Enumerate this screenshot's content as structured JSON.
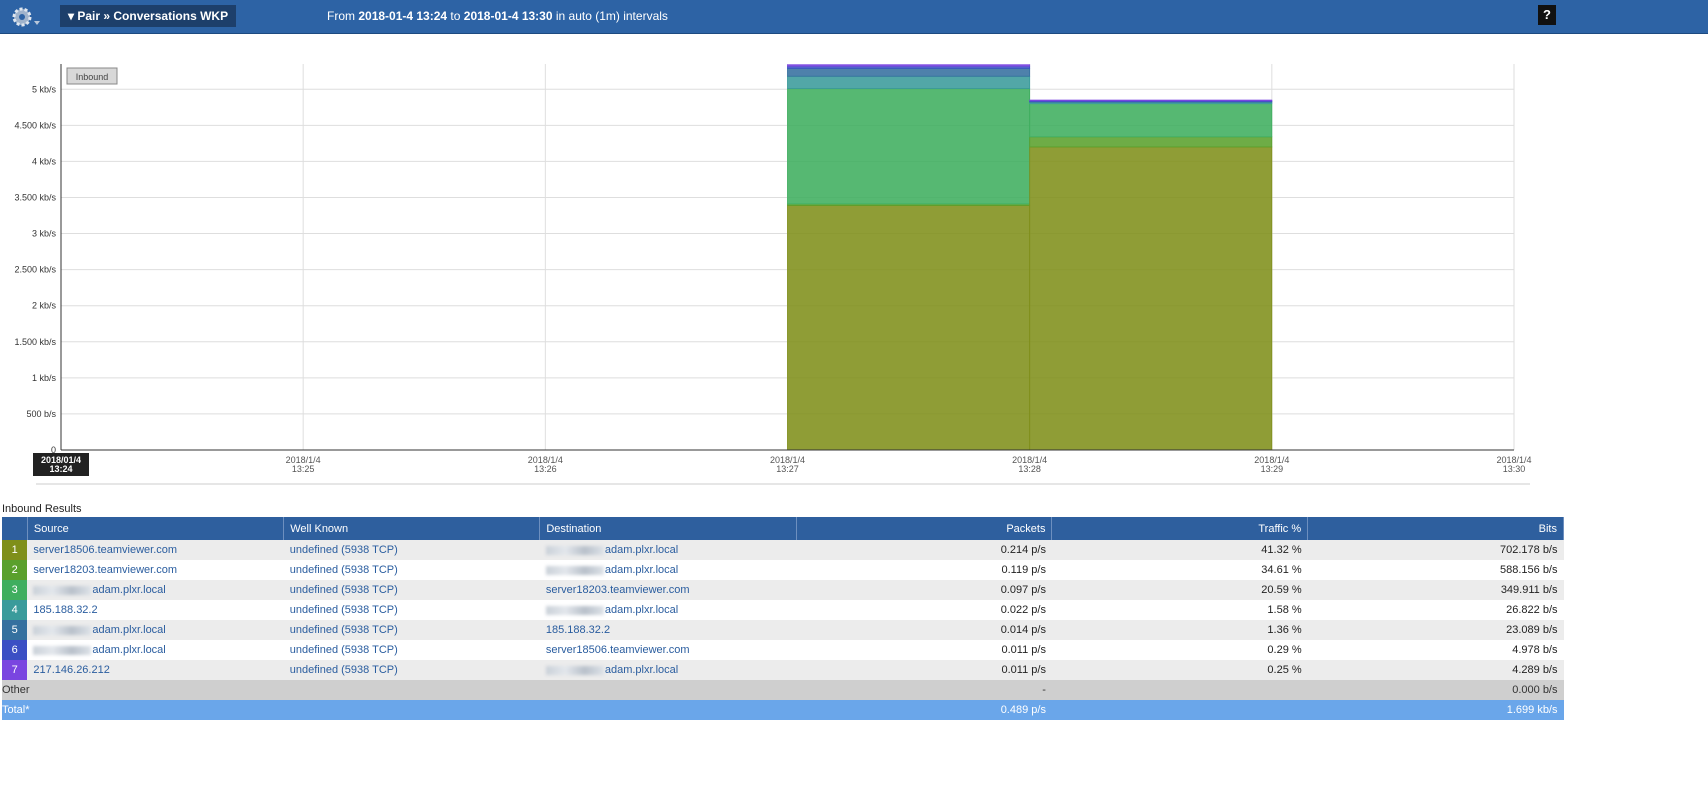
{
  "header": {
    "menu": "Pair » Conversations WKP",
    "range": {
      "from_label": "From",
      "from": "2018-01-4 13:24",
      "to_label": "to",
      "to": "2018-01-4 13:30",
      "suffix": "in auto (1m) intervals"
    },
    "help": "?"
  },
  "chart_data": {
    "type": "area",
    "step": true,
    "stacked": true,
    "button": "Inbound",
    "grid": true,
    "x": [
      {
        "date": "2018/01/4",
        "time": "13:24"
      },
      {
        "date": "2018/1/4",
        "time": "13:25"
      },
      {
        "date": "2018/1/4",
        "time": "13:26"
      },
      {
        "date": "2018/1/4",
        "time": "13:27"
      },
      {
        "date": "2018/1/4",
        "time": "13:28"
      },
      {
        "date": "2018/1/4",
        "time": "13:29"
      },
      {
        "date": "2018/1/4",
        "time": "13:30"
      }
    ],
    "ylim": [
      0,
      5.35
    ],
    "yticks": [
      0,
      {
        "value": 0.5,
        "label": "500 b/s"
      },
      {
        "value": 1,
        "label": "1 kb/s"
      },
      {
        "value": 1.5,
        "label": "1.500 kb/s"
      },
      {
        "value": 2,
        "label": "2 kb/s"
      },
      {
        "value": 2.5,
        "label": "2.500 kb/s"
      },
      {
        "value": 3,
        "label": "3 kb/s"
      },
      {
        "value": 3.5,
        "label": "3.500 kb/s"
      },
      {
        "value": 4,
        "label": "4 kb/s"
      },
      {
        "value": 4.5,
        "label": "4.500 kb/s"
      },
      {
        "value": 5,
        "label": "5 kb/s"
      }
    ],
    "series": [
      {
        "name": "1",
        "color": "#7f8f1a",
        "values": [
          null,
          null,
          null,
          3.39,
          4.2,
          null,
          null
        ]
      },
      {
        "name": "2",
        "color": "#5aa02c",
        "values": [
          null,
          null,
          null,
          0.02,
          0.14,
          null,
          null
        ]
      },
      {
        "name": "3",
        "color": "#3fae5f",
        "values": [
          null,
          null,
          null,
          1.6,
          0.46,
          null,
          null
        ]
      },
      {
        "name": "4",
        "color": "#3a9b9b",
        "values": [
          null,
          null,
          null,
          0.17,
          0.02,
          null,
          null
        ]
      },
      {
        "name": "5",
        "color": "#35709f",
        "values": [
          null,
          null,
          null,
          0.11,
          0.01,
          null,
          null
        ]
      },
      {
        "name": "6",
        "color": "#3b4fc4",
        "values": [
          null,
          null,
          null,
          0.03,
          0.01,
          null,
          null
        ]
      },
      {
        "name": "7",
        "color": "#7a45e0",
        "values": [
          null,
          null,
          null,
          0.02,
          0.01,
          null,
          null
        ]
      }
    ]
  },
  "table": {
    "caption": "Inbound Results",
    "columns": [
      "Source",
      "Well Known",
      "Destination",
      "Packets",
      "Traffic %",
      "Bits"
    ],
    "rows": [
      [
        "server18506.teamviewer.com",
        "undefined (5938 TCP)",
        "adam.plxr.local",
        "0.214 p/s",
        "41.32 %",
        "702.178 b/s"
      ],
      [
        "server18203.teamviewer.com",
        "undefined (5938 TCP)",
        "adam.plxr.local",
        "0.119 p/s",
        "34.61 %",
        "588.156 b/s"
      ],
      [
        "adam.plxr.local",
        "undefined (5938 TCP)",
        "server18203.teamviewer.com",
        "0.097 p/s",
        "20.59 %",
        "349.911 b/s"
      ],
      [
        "185.188.32.2",
        "undefined (5938 TCP)",
        "adam.plxr.local",
        "0.022 p/s",
        "1.58 %",
        "26.822 b/s"
      ],
      [
        "adam.plxr.local",
        "undefined (5938 TCP)",
        "185.188.32.2",
        "0.014 p/s",
        "1.36 %",
        "23.089 b/s"
      ],
      [
        "adam.plxr.local",
        "undefined (5938 TCP)",
        "server18506.teamviewer.com",
        "0.011 p/s",
        "0.29 %",
        "4.978 b/s"
      ],
      [
        "217.146.26.212",
        "undefined (5938 TCP)",
        "adam.plxr.local",
        "0.011 p/s",
        "0.25 %",
        "4.289 b/s"
      ]
    ],
    "other": {
      "label": "Other",
      "packets": "-",
      "bits": "0.000 b/s"
    },
    "total": {
      "label": "Total*",
      "packets": "0.489 p/s",
      "bits": "1.699 kb/s"
    }
  }
}
